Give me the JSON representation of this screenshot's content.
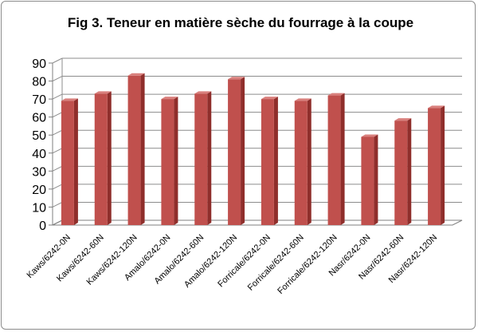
{
  "chart_data": {
    "type": "bar",
    "title": "Fig 3. Teneur en matière sèche du fourrage à la coupe",
    "xlabel": "",
    "ylabel": "",
    "categories": [
      "Kaws/6242-0N",
      "Kaws/6242-60N",
      "Kaws/6242-120N",
      "Amalo/6242-0N",
      "Amalo/6242-60N",
      "Amalo/6242-120N",
      "Forricale/6242-0N",
      "Forricale/6242-60N",
      "Forricale/6242-120N",
      "Nasr/6242-0N",
      "Nasr/6242-60N",
      "Nasr/6242-120N"
    ],
    "values": [
      69,
      73,
      83,
      70,
      73,
      81,
      70,
      69,
      72,
      49,
      58,
      65
    ],
    "ylim": [
      0,
      90
    ],
    "yticks": [
      "0",
      "10",
      "20",
      "30",
      "40",
      "50",
      "60",
      "70",
      "80",
      "90"
    ],
    "grid": true,
    "legend": "none",
    "colors": {
      "bar_front": "#c0504d",
      "bar_side": "#8f2e2b",
      "bar_top": "#d9807d",
      "grid": "#8c8c8c"
    }
  }
}
